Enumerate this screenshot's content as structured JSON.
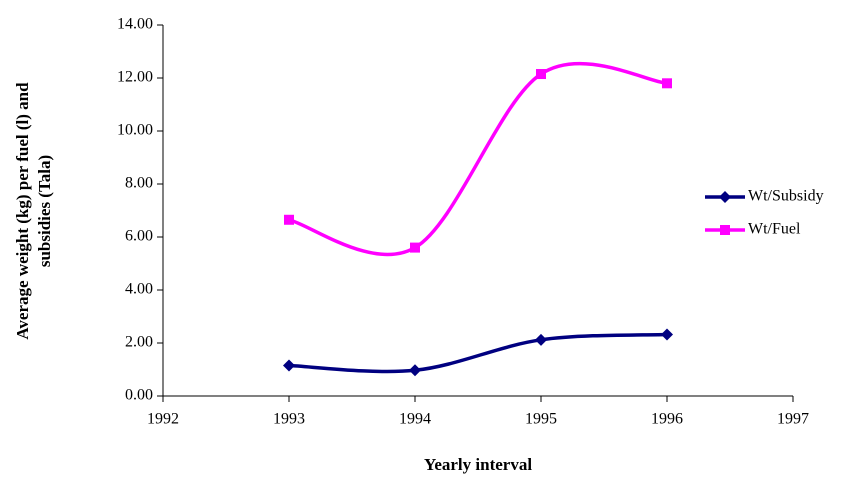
{
  "chart_data": {
    "type": "line",
    "smooth": true,
    "x_label": "Yearly interval",
    "y_label": [
      "Average weight (kg) per fuel (l) and",
      "subsidies (Tala)"
    ],
    "x": [
      1993,
      1994,
      1995,
      1996
    ],
    "series": [
      {
        "name": "Wt/Subsidy",
        "color": "#000080",
        "marker": "diamond",
        "values": [
          1.15,
          0.97,
          2.12,
          2.32
        ]
      },
      {
        "name": "Wt/Fuel",
        "color": "#ff00ff",
        "marker": "square",
        "values": [
          6.65,
          5.6,
          12.15,
          11.8
        ]
      }
    ],
    "xlim": [
      1992,
      1997
    ],
    "xticks": [
      1992,
      1993,
      1994,
      1995,
      1996,
      1997
    ],
    "ylim": [
      0,
      14
    ],
    "yticks": [
      {
        "value": 0,
        "label": "0.00"
      },
      {
        "value": 2,
        "label": "2.00"
      },
      {
        "value": 4,
        "label": "4.00"
      },
      {
        "value": 6,
        "label": "6.00"
      },
      {
        "value": 8,
        "label": "8.00"
      },
      {
        "value": 10,
        "label": "10.00"
      },
      {
        "value": 12,
        "label": "12.00"
      },
      {
        "value": 14,
        "label": "14.00"
      }
    ],
    "grid": false,
    "legend": "right"
  }
}
